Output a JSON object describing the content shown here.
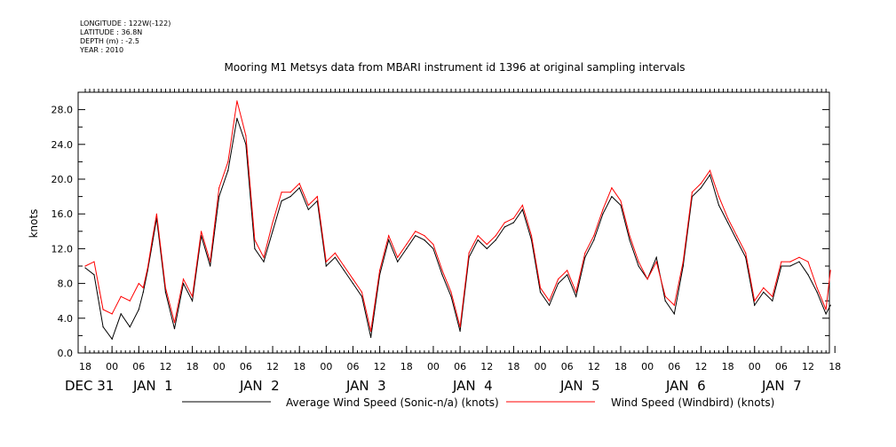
{
  "header": {
    "longitude": "LONGITUDE : 122W(-122)",
    "latitude": "LATITUDE : 36.8N",
    "depth": "DEPTH (m) : -2.5",
    "year": "YEAR : 2010"
  },
  "colors": {
    "sonic": "#000000",
    "windbird": "#ff0000",
    "axis": "#000000"
  },
  "chart_data": {
    "type": "line",
    "title": "Mooring M1 Metsys data from MBARI instrument id 1396 at original sampling intervals",
    "xlabel": "",
    "ylabel": "knots",
    "ylim": [
      0,
      30
    ],
    "xlim_hours_from_start": [
      0,
      168
    ],
    "grid": false,
    "legend_placement": "bottom",
    "y_ticks": [
      "0.0",
      "4.0",
      "8.0",
      "12.0",
      "16.0",
      "20.0",
      "24.0",
      "28.0"
    ],
    "x_hour_ticks": [
      "18",
      "00",
      "06",
      "12",
      "18",
      "00",
      "06",
      "12",
      "18",
      "00",
      "06",
      "12",
      "18",
      "00",
      "06",
      "12",
      "18",
      "00",
      "06",
      "12",
      "18",
      "00",
      "06",
      "12",
      "18",
      "00",
      "06",
      "12",
      "18"
    ],
    "x_day_labels": [
      "DEC 31",
      "JAN  1",
      "JAN  2",
      "JAN  3",
      "JAN  4",
      "JAN  5",
      "JAN  6",
      "JAN  7"
    ],
    "series": [
      {
        "name": "Average Wind Speed (Sonic-n/a) (knots)",
        "color": "#000000",
        "x": [
          0,
          2,
          4,
          6,
          8,
          10,
          12,
          13,
          14,
          15,
          16,
          18,
          20,
          22,
          24,
          26,
          28,
          30,
          32,
          34,
          36,
          38,
          40,
          42,
          44,
          46,
          48,
          50,
          52,
          54,
          56,
          58,
          60,
          62,
          64,
          66,
          68,
          70,
          72,
          74,
          76,
          78,
          80,
          82,
          84,
          86,
          88,
          90,
          92,
          94,
          96,
          98,
          100,
          102,
          104,
          106,
          108,
          110,
          112,
          114,
          116,
          118,
          120,
          122,
          124,
          126,
          128,
          130,
          132,
          134,
          136,
          138,
          140,
          142,
          144,
          146,
          148,
          150,
          152,
          154,
          156,
          158,
          160,
          162,
          164,
          166,
          167
        ],
        "y": [
          9.8,
          9.0,
          3.0,
          1.6,
          4.5,
          3.0,
          5.0,
          7.0,
          9.5,
          12.5,
          15.5,
          7.0,
          2.8,
          8.0,
          6.0,
          13.5,
          10.0,
          18.0,
          21.0,
          27.0,
          24.0,
          12.0,
          10.5,
          14.0,
          17.5,
          18.0,
          19.0,
          16.5,
          17.5,
          10.0,
          11.0,
          9.5,
          8.0,
          6.5,
          1.8,
          9.0,
          13.0,
          10.5,
          12.0,
          13.5,
          13.0,
          12.0,
          9.0,
          6.5,
          2.5,
          11.0,
          13.0,
          12.0,
          13.0,
          14.5,
          15.0,
          16.5,
          13.0,
          7.0,
          5.5,
          8.0,
          9.0,
          6.5,
          11.0,
          13.0,
          16.0,
          18.0,
          17.0,
          13.0,
          10.0,
          8.5,
          11.0,
          6.0,
          4.5,
          10.0,
          18.0,
          19.0,
          20.5,
          17.0,
          15.0,
          13.0,
          11.0,
          5.5,
          7.0,
          6.0,
          10.0,
          10.0,
          10.5,
          9.0,
          7.0,
          4.5,
          5.5
        ]
      },
      {
        "name": "Wind Speed (Windbird) (knots)",
        "color": "#ff0000",
        "x": [
          0,
          2,
          4,
          6,
          8,
          10,
          12,
          13,
          14,
          15,
          16,
          18,
          20,
          22,
          24,
          26,
          28,
          30,
          32,
          34,
          36,
          38,
          40,
          42,
          44,
          46,
          48,
          50,
          52,
          54,
          56,
          58,
          60,
          62,
          64,
          66,
          68,
          70,
          72,
          74,
          76,
          78,
          80,
          82,
          84,
          86,
          88,
          90,
          92,
          94,
          96,
          98,
          100,
          102,
          104,
          106,
          108,
          110,
          112,
          114,
          116,
          118,
          120,
          122,
          124,
          126,
          128,
          130,
          132,
          134,
          136,
          138,
          140,
          142,
          144,
          146,
          148,
          150,
          152,
          154,
          156,
          158,
          160,
          162,
          164,
          166,
          167
        ],
        "y": [
          10.0,
          10.5,
          5.0,
          4.5,
          6.5,
          6.0,
          8.0,
          7.5,
          9.8,
          13.0,
          16.0,
          7.5,
          3.5,
          8.5,
          6.5,
          14.0,
          10.5,
          19.0,
          22.0,
          29.0,
          25.0,
          13.0,
          11.0,
          15.0,
          18.5,
          18.5,
          19.5,
          17.0,
          18.0,
          10.5,
          11.5,
          10.0,
          8.5,
          7.0,
          2.5,
          9.5,
          13.5,
          11.0,
          12.5,
          14.0,
          13.5,
          12.5,
          9.5,
          7.0,
          3.0,
          11.5,
          13.5,
          12.5,
          13.5,
          15.0,
          15.5,
          17.0,
          13.5,
          7.5,
          6.0,
          8.5,
          9.5,
          7.0,
          11.5,
          13.5,
          16.5,
          19.0,
          17.5,
          13.5,
          10.5,
          8.5,
          10.5,
          6.5,
          5.5,
          10.5,
          18.5,
          19.5,
          21.0,
          18.0,
          15.5,
          13.5,
          11.5,
          6.0,
          7.5,
          6.5,
          10.5,
          10.5,
          11.0,
          10.5,
          7.5,
          5.0,
          9.5
        ]
      }
    ]
  }
}
